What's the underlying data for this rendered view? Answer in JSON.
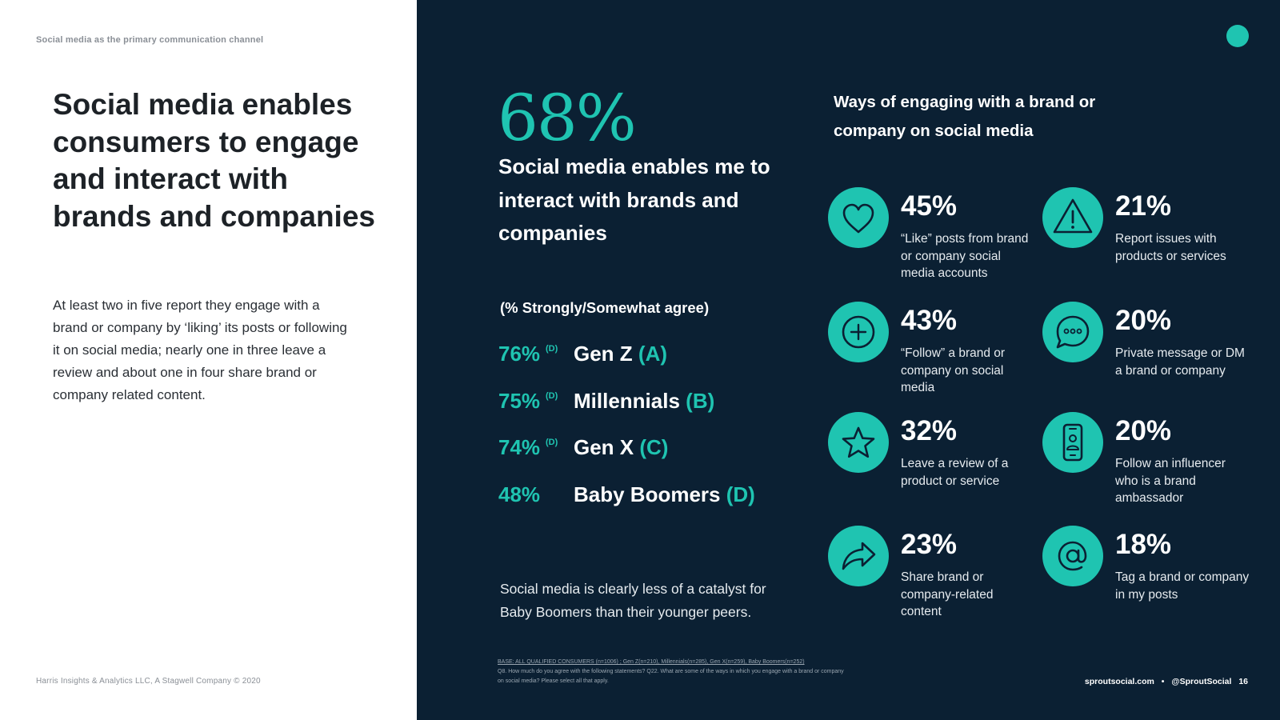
{
  "left": {
    "eyebrow": "Social media as the primary communication channel",
    "headline": "Social media enables consumers to engage and interact with brands and companies",
    "body": "At least two in five report they engage with a brand or company by ‘liking’ its posts or following it on social media; nearly one in three leave a review and about one in four share brand or company related content.",
    "footer": "Harris Insights & Analytics LLC, A Stagwell Company © 2020"
  },
  "stat": {
    "value": "68%",
    "statement": "Social media enables me to interact with brands and companies",
    "note": "(% Strongly/Somewhat agree)"
  },
  "generations": [
    {
      "pct": "76%",
      "sup": "(D)",
      "name": "Gen Z",
      "letter": "(A)"
    },
    {
      "pct": "75%",
      "sup": "(D)",
      "name": "Millennials",
      "letter": "(B)"
    },
    {
      "pct": "74%",
      "sup": "(D)",
      "name": "Gen X",
      "letter": "(C)"
    },
    {
      "pct": "48%",
      "sup": "",
      "name": "Baby Boomers",
      "letter": "(D)"
    }
  ],
  "catalyst": "Social media is clearly less of a catalyst for Baby Boomers than their younger peers.",
  "base_note": {
    "line1": "BASE: ALL QUALIFIED CONSUMERS (n=1006) ; Gen Z(n=210), Millennials(n=285), Gen X(n=259), Baby Boomers(n=252)",
    "line2": "Q8. How much do you agree with the following statements? Q22. What are some of the ways in which you engage with a brand or company on social media? Please select all that apply."
  },
  "ways": {
    "title": "Ways of engaging with a brand or company on social media",
    "items": [
      {
        "icon": "heart-icon",
        "pct": "45%",
        "desc": "“Like” posts from brand or company social media accounts"
      },
      {
        "icon": "warning-icon",
        "pct": "21%",
        "desc": "Report issues with products or services"
      },
      {
        "icon": "plus-circle-icon",
        "pct": "43%",
        "desc": "“Follow” a brand or company on social media"
      },
      {
        "icon": "chat-bubble-icon",
        "pct": "20%",
        "desc": "Private message or DM a brand or company"
      },
      {
        "icon": "star-icon",
        "pct": "32%",
        "desc": "Leave a review of a product or service"
      },
      {
        "icon": "phone-person-icon",
        "pct": "20%",
        "desc": "Follow an influencer who is a brand ambassador"
      },
      {
        "icon": "share-arrow-icon",
        "pct": "23%",
        "desc": "Share brand or company-related content"
      },
      {
        "icon": "at-sign-icon",
        "pct": "18%",
        "desc": "Tag a brand or company in my posts"
      }
    ]
  },
  "footer_right": {
    "site": "sproutsocial.com",
    "separator": "•",
    "handle": "@SproutSocial",
    "page": "16"
  },
  "colors": {
    "accent": "#1fc4b1",
    "navy": "#0b2033",
    "dark_text": "#1d2227"
  }
}
